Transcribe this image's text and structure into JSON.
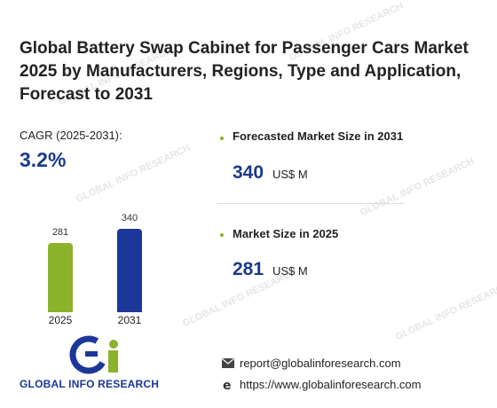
{
  "title": "Global Battery Swap Cabinet for Passenger Cars Market 2025 by Manufacturers, Regions, Type and Application, Forecast to 2031",
  "cagr": {
    "label": "CAGR (2025-2031):",
    "value": "3.2%"
  },
  "chart_data": {
    "type": "bar",
    "categories": [
      "2025",
      "2031"
    ],
    "values": [
      281,
      340
    ],
    "colors": [
      "#8bb22b",
      "#1a3799"
    ],
    "ylim": [
      0,
      340
    ]
  },
  "metrics": [
    {
      "label": "Forecasted Market Size in 2031",
      "value": "340",
      "unit": "US$ M"
    },
    {
      "label": "Market Size in 2025",
      "value": "281",
      "unit": "US$ M"
    }
  ],
  "logo": {
    "name": "GLOBAL INFO RESEARCH"
  },
  "contact": {
    "email": "report@globalinforesearch.com",
    "website": "https://www.globalinforesearch.com"
  },
  "watermark": "GLOBAL INFO RESEARCH",
  "colors": {
    "accent_blue": "#1b3a8c",
    "accent_green": "#8bb22b"
  }
}
